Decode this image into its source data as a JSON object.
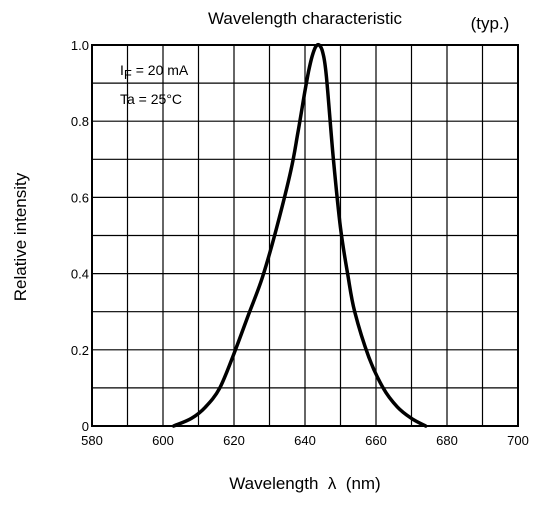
{
  "chart_data": {
    "type": "line",
    "title": "Wavelength characteristic",
    "subtitle": "(typ.)",
    "xlabel": "Wavelength  λ  (nm)",
    "ylabel": "Relative intensity",
    "xlim": [
      580,
      700
    ],
    "ylim": [
      0,
      1.0
    ],
    "x_ticks": [
      "580",
      "600",
      "620",
      "640",
      "660",
      "680",
      "700"
    ],
    "y_ticks": [
      "0",
      "0.2",
      "0.4",
      "0.6",
      "0.8",
      "1.0"
    ],
    "grid": true,
    "annotations": {
      "if_label": "I",
      "if_sub": "F",
      "if_value": " = 20 mA",
      "ta_label": "Ta = 25°C"
    },
    "series": [
      {
        "x": [
          603,
          608,
          612,
          616,
          620,
          624,
          628,
          632,
          636,
          638,
          640,
          641,
          642,
          643,
          644,
          645,
          646,
          648,
          650,
          652,
          654,
          658,
          662,
          666,
          670,
          674
        ],
        "values": [
          0.0,
          0.02,
          0.05,
          0.1,
          0.19,
          0.29,
          0.39,
          0.52,
          0.67,
          0.77,
          0.88,
          0.93,
          0.97,
          0.995,
          1.0,
          0.98,
          0.92,
          0.7,
          0.52,
          0.4,
          0.3,
          0.18,
          0.1,
          0.05,
          0.02,
          0.0
        ]
      }
    ],
    "line_color": "#000000"
  }
}
